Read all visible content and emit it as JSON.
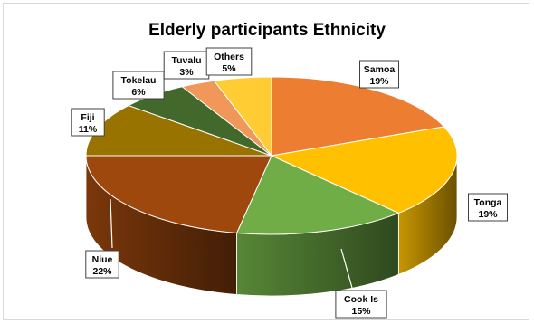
{
  "chart_data": {
    "type": "pie",
    "title": "Elderly participants Ethnicity",
    "slices": [
      {
        "label": "Samoa",
        "percent": "19%",
        "value": 19,
        "color": "#ED7D31"
      },
      {
        "label": "Tonga",
        "percent": "19%",
        "value": 19,
        "color": "#FFC000"
      },
      {
        "label": "Cook Is",
        "percent": "15%",
        "value": 15,
        "color": "#70AD47"
      },
      {
        "label": "Niue",
        "percent": "22%",
        "value": 22,
        "color": "#9E480E"
      },
      {
        "label": "Fiji",
        "percent": "11%",
        "value": 11,
        "color": "#997300"
      },
      {
        "label": "Tokelau",
        "percent": "6%",
        "value": 6,
        "color": "#43682B"
      },
      {
        "label": "Tuvalu",
        "percent": "3%",
        "value": 3,
        "color": "#F1975A"
      },
      {
        "label": "Others",
        "percent": "5%",
        "value": 5,
        "color": "#FFCD33"
      }
    ],
    "style": "3d-pie",
    "legend": "none",
    "data_labels": "category and percent"
  }
}
